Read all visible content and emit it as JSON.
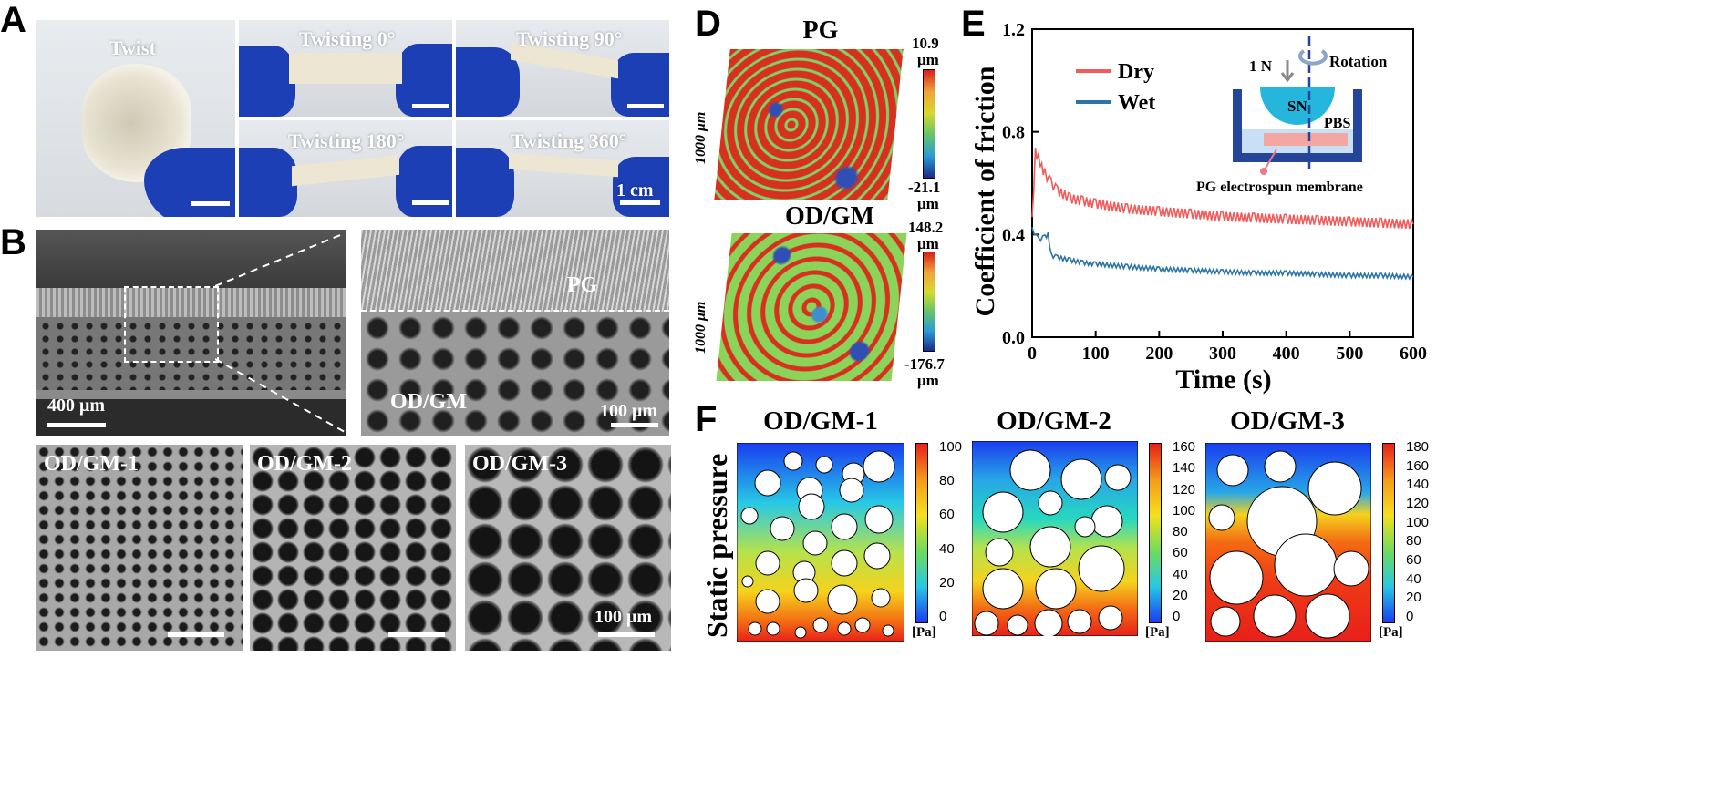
{
  "panels": {
    "a": "A",
    "b": "B",
    "d": "D",
    "e": "E",
    "f": "F"
  },
  "panelA": {
    "labels": [
      "Twist",
      "Twisting 0°",
      "Twisting 90°",
      "Twisting 180°",
      "Twisting 360°"
    ],
    "scale": "1 cm"
  },
  "panelB": {
    "pg": "PG",
    "odgm": "OD/GM",
    "scale1": "400 μm",
    "scale2": "100 μm",
    "sub": [
      "OD/GM-1",
      "OD/GM-2",
      "OD/GM-3"
    ],
    "scale3": "100 μm"
  },
  "panelD": {
    "t1": "PG",
    "t2": "OD/GM",
    "axis": "1000 μm",
    "max1": "10.9",
    "min1": "-21.1",
    "max2": "148.2",
    "min2": "-176.7",
    "unit": "μm"
  },
  "chart_data": {
    "type": "line",
    "xlabel": "Time (s)",
    "ylabel": "Coefficient of friction",
    "xlim": [
      0,
      600
    ],
    "ylim": [
      0,
      1.2
    ],
    "xticks": [
      "0",
      "100",
      "200",
      "300",
      "400",
      "500",
      "600"
    ],
    "yticks": [
      "0.0",
      "0.4",
      "0.8",
      "1.2"
    ],
    "series": [
      {
        "name": "Dry",
        "color": "#f35a5a",
        "x": [
          0,
          5,
          10,
          15,
          20,
          30,
          40,
          60,
          80,
          100,
          150,
          200,
          250,
          300,
          350,
          400,
          450,
          500,
          550,
          600
        ],
        "y": [
          0.45,
          0.72,
          0.7,
          0.66,
          0.64,
          0.6,
          0.57,
          0.54,
          0.53,
          0.52,
          0.5,
          0.49,
          0.48,
          0.47,
          0.465,
          0.46,
          0.455,
          0.45,
          0.445,
          0.44
        ]
      },
      {
        "name": "Wet",
        "color": "#2a74a8",
        "x": [
          0,
          10,
          20,
          25,
          30,
          40,
          60,
          80,
          100,
          150,
          200,
          250,
          300,
          350,
          400,
          450,
          500,
          550,
          600
        ],
        "y": [
          0.42,
          0.38,
          0.39,
          0.4,
          0.32,
          0.31,
          0.3,
          0.29,
          0.285,
          0.275,
          0.265,
          0.26,
          0.255,
          0.25,
          0.25,
          0.245,
          0.24,
          0.24,
          0.235
        ]
      }
    ],
    "inset": {
      "force": "1 N",
      "rotation": "Rotation",
      "ball": "SN",
      "liquid": "PBS",
      "membrane": "PG electrospun membrane"
    }
  },
  "panelF": {
    "ylabel": "Static pressure",
    "maps": [
      {
        "title": "OD/GM-1",
        "ticks": [
          "100",
          "80",
          "60",
          "40",
          "20",
          "0"
        ],
        "unit": "[Pa]"
      },
      {
        "title": "OD/GM-2",
        "ticks": [
          "160",
          "140",
          "120",
          "100",
          "80",
          "60",
          "40",
          "20",
          "0"
        ],
        "unit": "[Pa]"
      },
      {
        "title": "OD/GM-3",
        "ticks": [
          "180",
          "160",
          "140",
          "120",
          "100",
          "80",
          "60",
          "40",
          "20",
          "0"
        ],
        "unit": "[Pa]"
      }
    ]
  }
}
